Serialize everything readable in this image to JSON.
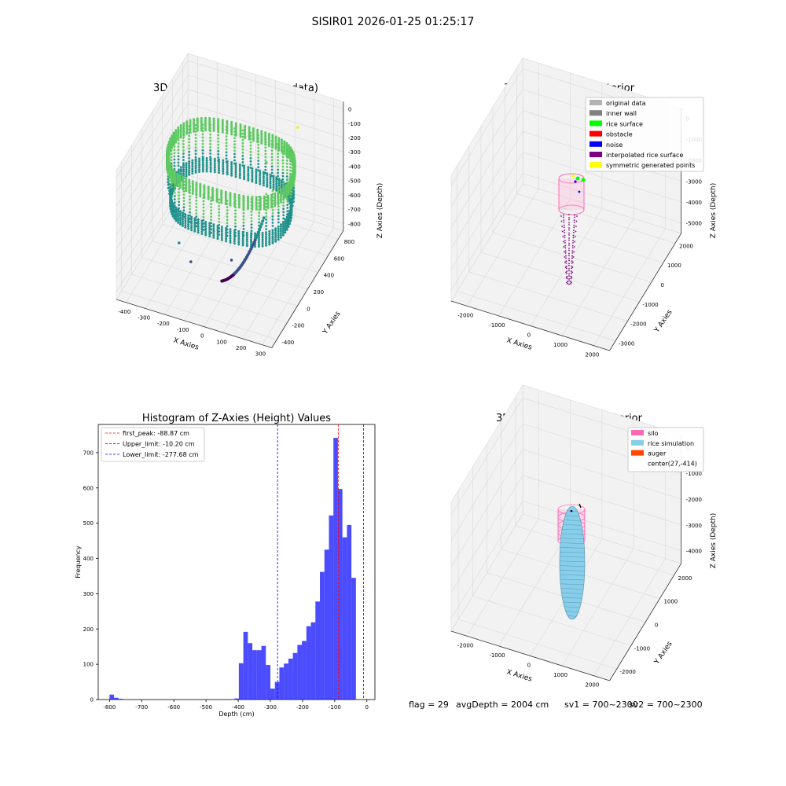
{
  "figure": {
    "suptitle": "SISIR01 2026-01-25 01:25:17",
    "footer": {
      "flag": "flag = 29",
      "avg": "avgDepth = 2004 cm",
      "sv1": "sv1 = 700~2300",
      "sv2": "sv2 = 700~2300"
    }
  },
  "chart_data": [
    {
      "type": "scatter",
      "title": "3D Plot of Silo Interior(row data)",
      "xlabel": "X Axies",
      "ylabel": "Y Axies",
      "zlabel": "Z Axies (Depth)",
      "xticks": [
        "-400",
        "-300",
        "-200",
        "-100",
        "0",
        "100",
        "200",
        "300"
      ],
      "yticks": [
        "-400",
        "-200",
        "0",
        "200",
        "400",
        "600",
        "800"
      ],
      "zticks": [
        "0",
        "-100",
        "-200",
        "-300",
        "-400",
        "-500",
        "-600",
        "-700",
        "-800"
      ],
      "xlim": [
        -430,
        300
      ],
      "ylim": [
        -450,
        850
      ],
      "zlim": [
        -860,
        30
      ],
      "colormap": [
        "#440154",
        "#3b528b",
        "#21918c",
        "#5ec962",
        "#fde725"
      ],
      "grid": true
    },
    {
      "type": "scatter",
      "title": "3D classify of Silo Interior",
      "xlabel": "X Axies",
      "ylabel": "Y Axies",
      "zlabel": "Z Axies (Depth)",
      "xticks": [
        "-2000",
        "-1000",
        "0",
        "1000",
        "2000"
      ],
      "yticks": [
        "-3000",
        "-2000",
        "-1000",
        "0",
        "1000",
        "2000"
      ],
      "zticks": [
        "0",
        "-1000",
        "-2000",
        "-3000",
        "-4000",
        "-5000"
      ],
      "legend_position": "top-right",
      "legend": [
        {
          "label": "original data",
          "color": "#b3b3b3"
        },
        {
          "label": "inner wall",
          "color": "#808080"
        },
        {
          "label": "rice surface",
          "color": "#00ff00"
        },
        {
          "label": "obstacle",
          "color": "#ff0000"
        },
        {
          "label": "noise",
          "color": "#0000ff"
        },
        {
          "label": "interpolated rice surface",
          "color": "#800080"
        },
        {
          "label": "symmetric generated points",
          "color": "#ffff00"
        }
      ],
      "grid": true
    },
    {
      "type": "bar",
      "title": "Histogram of Z-Axies (Height) Values",
      "xlabel": "Depth (cm)",
      "ylabel": "Frequency",
      "xlim": [
        -835,
        25
      ],
      "ylim": [
        0,
        780
      ],
      "xticks": [
        -800,
        -700,
        -600,
        -500,
        -400,
        -300,
        -200,
        -100,
        0
      ],
      "yticks": [
        0,
        100,
        200,
        300,
        400,
        500,
        600,
        700
      ],
      "bar_color": "#0000ff",
      "bar_alpha": 0.7,
      "bins": [
        {
          "x0": -800,
          "x1": -786,
          "v": 14
        },
        {
          "x0": -786,
          "x1": -772,
          "v": 5
        },
        {
          "x0": -772,
          "x1": -758,
          "v": 2
        },
        {
          "x0": -412,
          "x1": -398,
          "v": 3
        },
        {
          "x0": -398,
          "x1": -384,
          "v": 103
        },
        {
          "x0": -384,
          "x1": -370,
          "v": 192
        },
        {
          "x0": -370,
          "x1": -356,
          "v": 160
        },
        {
          "x0": -356,
          "x1": -342,
          "v": 140
        },
        {
          "x0": -342,
          "x1": -328,
          "v": 140
        },
        {
          "x0": -328,
          "x1": -314,
          "v": 152
        },
        {
          "x0": -314,
          "x1": -300,
          "v": 98
        },
        {
          "x0": -300,
          "x1": -286,
          "v": 31
        },
        {
          "x0": -286,
          "x1": -272,
          "v": 50
        },
        {
          "x0": -272,
          "x1": -258,
          "v": 91
        },
        {
          "x0": -258,
          "x1": -244,
          "v": 102
        },
        {
          "x0": -244,
          "x1": -230,
          "v": 116
        },
        {
          "x0": -230,
          "x1": -216,
          "v": 132
        },
        {
          "x0": -216,
          "x1": -202,
          "v": 155
        },
        {
          "x0": -202,
          "x1": -188,
          "v": 166
        },
        {
          "x0": -188,
          "x1": -174,
          "v": 208
        },
        {
          "x0": -174,
          "x1": -160,
          "v": 219
        },
        {
          "x0": -160,
          "x1": -146,
          "v": 278
        },
        {
          "x0": -146,
          "x1": -132,
          "v": 362
        },
        {
          "x0": -132,
          "x1": -118,
          "v": 425
        },
        {
          "x0": -118,
          "x1": -104,
          "v": 522
        },
        {
          "x0": -104,
          "x1": -90,
          "v": 742
        },
        {
          "x0": -90,
          "x1": -76,
          "v": 597
        },
        {
          "x0": -76,
          "x1": -62,
          "v": 460
        },
        {
          "x0": -62,
          "x1": -48,
          "v": 495
        },
        {
          "x0": -48,
          "x1": -34,
          "v": 345
        }
      ],
      "vlines": [
        {
          "x": -88.87,
          "color": "#ff0000",
          "label": "first_peak: -88.87 cm"
        },
        {
          "x": -10.2,
          "color": "#0000ff",
          "label": "Upper_limit: -10.20 cm"
        },
        {
          "x": -277.68,
          "color": "#0000ff",
          "label": "Lower_limit: -277.68 cm"
        }
      ],
      "legend_position": "top-left",
      "grid": false
    },
    {
      "type": "scatter",
      "title": "3D simulation of Silo Interior",
      "xlabel": "X Axies",
      "ylabel": "Y Axies",
      "zlabel": "Z Axies (Depth)",
      "xticks": [
        "-2000",
        "-1000",
        "0",
        "1000",
        "2000"
      ],
      "yticks": [
        "-2000",
        "-1000",
        "0",
        "1000",
        "2000"
      ],
      "zticks": [
        "0",
        "-1000",
        "-2000",
        "-3000",
        "-4000"
      ],
      "legend_position": "top-right",
      "legend": [
        {
          "label": "silo",
          "color": "#ff69b4"
        },
        {
          "label": "rice simulation",
          "color": "#87ceeb"
        },
        {
          "label": "auger",
          "color": "#ff4500"
        },
        {
          "label": "center(27,-414)",
          "color": ""
        }
      ],
      "grid": true
    }
  ]
}
